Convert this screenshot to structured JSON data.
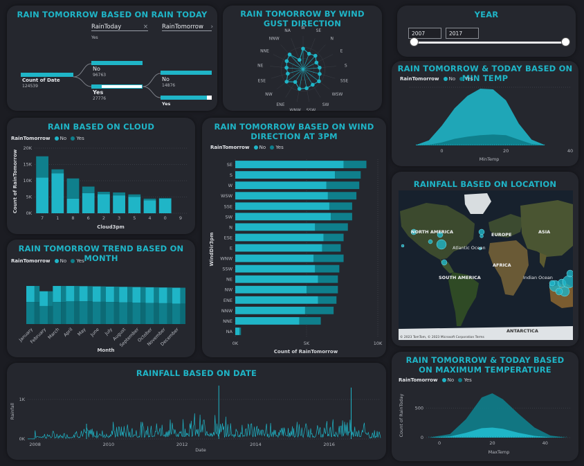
{
  "colors": {
    "no": "#1fb5c7",
    "yes": "#0f7f8c",
    "accent": "#1fb5c7",
    "bg": "#1b1c22",
    "card": "#25272e"
  },
  "decomp": {
    "title": "RAIN TOMORROW BASED ON RAIN TODAY",
    "level1": "RainToday",
    "level2": "RainTomorrow",
    "root_label": "Count of Date",
    "root_value": "124539",
    "top_label": "Yes",
    "mid_nodes": [
      {
        "label": "No",
        "value": "96763"
      },
      {
        "label": "Yes",
        "value": "27776"
      }
    ],
    "right_nodes": [
      {
        "label": "No",
        "value": "14876"
      },
      {
        "label": "Yes",
        "value": ""
      }
    ]
  },
  "gust": {
    "title": "RAIN TOMORROW BY WIND GUST DIRECTION",
    "directions": [
      "W",
      "SE",
      "N",
      "E",
      "S",
      "SSE",
      "WSW",
      "SW",
      "SSW",
      "WNW",
      "ENE",
      "NW",
      "ESE",
      "NE",
      "NNE",
      "NNW",
      "NA"
    ]
  },
  "year": {
    "title": "YEAR",
    "from": "2007",
    "to": "2017"
  },
  "mintemp": {
    "title": "RAIN TOMORROW & TODAY BASED ON MIN TEMP",
    "legend_title": "RainTomorrow",
    "no_label": "No",
    "yes_label": "Yes",
    "xlabel": "MinTemp",
    "ticks": [
      "0",
      "20",
      "40"
    ]
  },
  "cloud": {
    "title": "RAIN BASED ON CLOUD",
    "legend_title": "RainTomorrow",
    "no_label": "No",
    "yes_label": "Yes",
    "ylabel": "Count of RainTomorrow",
    "xlabel": "Cloud3pm",
    "yticks": [
      "0K",
      "5K",
      "10K",
      "15K",
      "20K"
    ]
  },
  "winddir": {
    "title": "RAIN TOMORROW BASED ON WIND DIRECTION AT 3PM",
    "legend_title": "RainTomorrow",
    "no_label": "No",
    "yes_label": "Yes",
    "ylabel": "WindDir3pm",
    "xlabel": "Count of RainTomorrow",
    "xticks": [
      "0K",
      "5K",
      "10K"
    ]
  },
  "location": {
    "title": "RAINFALL BASED ON LOCATION",
    "labels": {
      "na": "NORTH AMERICA",
      "eu": "EUROPE",
      "asia": "ASIA",
      "atl": "Atlantic Ocean",
      "af": "AFRICA",
      "sa": "SOUTH AMERICA",
      "ind": "Indian Ocean",
      "ant": "ANTARCTICA"
    },
    "attribution": "© 2023 TomTom, © 2023 Microsoft Corporation  Terms"
  },
  "month": {
    "title": "RAIN TOMORROW TREND BASED ON MONTH",
    "legend_title": "RainTomorrow",
    "no_label": "No",
    "yes_label": "Yes",
    "xlabel": "Month",
    "months": [
      "January",
      "February",
      "March",
      "April",
      "May",
      "June",
      "July",
      "August",
      "September",
      "October",
      "November",
      "December"
    ]
  },
  "maxtemp": {
    "title": "RAIN TOMORROW & TODAY BASED ON MAXIMUM TEMPERATURE",
    "legend_title": "RainTomorrow",
    "no_label": "No",
    "yes_label": "Yes",
    "ylabel": "Count of RainToday",
    "xlabel": "MaxTemp",
    "yticks": [
      "0",
      "500"
    ],
    "xticks": [
      "0",
      "20",
      "40"
    ]
  },
  "rainfall_date": {
    "title": "RAINFALL BASED ON DATE",
    "ylabel": "Rainfall",
    "xlabel": "Date",
    "yticks": [
      "0K",
      "1K"
    ],
    "xticks": [
      "2008",
      "2010",
      "2012",
      "2014",
      "2016"
    ]
  },
  "chart_data": [
    {
      "type": "bar",
      "title": "RAIN BASED ON CLOUD",
      "categories": [
        "7",
        "1",
        "8",
        "6",
        "2",
        "3",
        "5",
        "4",
        "0",
        "9"
      ],
      "series": [
        {
          "name": "No",
          "values": [
            11000,
            12300,
            4500,
            6200,
            5900,
            5500,
            5000,
            4000,
            4500,
            0
          ]
        },
        {
          "name": "Yes",
          "values": [
            6500,
            1200,
            6200,
            2000,
            700,
            900,
            800,
            500,
            200,
            0
          ]
        }
      ],
      "xlabel": "Cloud3pm",
      "ylabel": "Count of RainTomorrow",
      "ylim": [
        0,
        20000
      ]
    },
    {
      "type": "bar",
      "title": "RAIN TOMORROW BASED ON WIND DIRECTION AT 3PM",
      "categories": [
        "SE",
        "S",
        "W",
        "WSW",
        "SSE",
        "SW",
        "N",
        "ESE",
        "E",
        "WNW",
        "SSW",
        "NE",
        "NW",
        "ENE",
        "NNW",
        "NNE",
        "NA"
      ],
      "series": [
        {
          "name": "No",
          "values": [
            7600,
            7000,
            6400,
            6500,
            6600,
            6700,
            5600,
            6200,
            6100,
            5500,
            5600,
            5800,
            5000,
            5800,
            4900,
            4500,
            300
          ]
        },
        {
          "name": "Yes",
          "values": [
            1600,
            1800,
            2300,
            2000,
            1600,
            1500,
            2300,
            1400,
            1300,
            2100,
            1700,
            1400,
            2200,
            1300,
            2000,
            1500,
            100
          ]
        }
      ],
      "xlabel": "Count of RainTomorrow",
      "ylabel": "WindDir3pm",
      "xlim": [
        0,
        10000
      ]
    },
    {
      "type": "area",
      "title": "RAIN TOMORROW TREND BASED ON MONTH",
      "categories": [
        "January",
        "February",
        "March",
        "April",
        "May",
        "June",
        "July",
        "August",
        "September",
        "October",
        "November",
        "December"
      ],
      "series": [
        {
          "name": "No",
          "values": [
            0.58,
            0.55,
            0.58,
            0.6,
            0.6,
            0.59,
            0.59,
            0.58,
            0.58,
            0.57,
            0.57,
            0.56
          ]
        },
        {
          "name": "Yes",
          "values": [
            0.42,
            0.45,
            0.42,
            0.4,
            0.4,
            0.41,
            0.41,
            0.42,
            0.42,
            0.43,
            0.43,
            0.44
          ]
        }
      ],
      "xlabel": "Month"
    },
    {
      "type": "area",
      "title": "RAIN TOMORROW & TODAY BASED ON MIN TEMP",
      "x": [
        -8,
        -4,
        0,
        4,
        8,
        12,
        16,
        20,
        24,
        28,
        32
      ],
      "series": [
        {
          "name": "No",
          "values": [
            5,
            60,
            230,
            420,
            560,
            640,
            620,
            480,
            220,
            60,
            5
          ]
        },
        {
          "name": "Yes",
          "values": [
            1,
            10,
            40,
            90,
            120,
            140,
            150,
            140,
            80,
            20,
            2
          ]
        }
      ],
      "xlabel": "MinTemp",
      "xlim": [
        -10,
        40
      ]
    },
    {
      "type": "area",
      "title": "RAIN TOMORROW & TODAY BASED ON MAXIMUM TEMPERATURE",
      "x": [
        -4,
        4,
        10,
        16,
        20,
        24,
        30,
        36,
        42,
        48
      ],
      "series": [
        {
          "name": "No",
          "values": [
            0,
            40,
            230,
            520,
            580,
            500,
            320,
            140,
            30,
            0
          ]
        },
        {
          "name": "Yes",
          "values": [
            0,
            20,
            80,
            160,
            170,
            150,
            80,
            30,
            5,
            0
          ]
        }
      ],
      "xlabel": "MaxTemp",
      "ylabel": "Count of RainToday",
      "xlim": [
        -5,
        50
      ]
    },
    {
      "type": "line",
      "title": "RAINFALL BASED ON DATE",
      "x": [
        "2007",
        "2008",
        "2009",
        "2010",
        "2011",
        "2012",
        "2013",
        "2014",
        "2015",
        "2016",
        "2017"
      ],
      "values": [
        5,
        120,
        200,
        260,
        320,
        380,
        300,
        280,
        260,
        340,
        150
      ],
      "peaks": [
        1350,
        1100,
        1300
      ],
      "xlabel": "Date",
      "ylabel": "Rainfall",
      "ylim": [
        0,
        1400
      ]
    }
  ]
}
